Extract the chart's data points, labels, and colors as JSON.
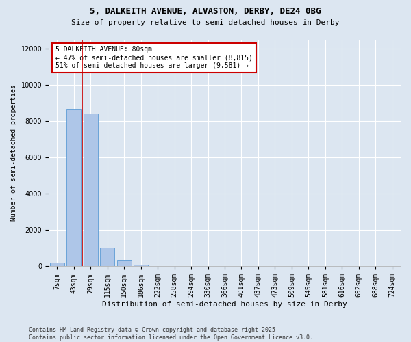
{
  "title1": "5, DALKEITH AVENUE, ALVASTON, DERBY, DE24 0BG",
  "title2": "Size of property relative to semi-detached houses in Derby",
  "xlabel": "Distribution of semi-detached houses by size in Derby",
  "ylabel": "Number of semi-detached properties",
  "categories": [
    "7sqm",
    "43sqm",
    "79sqm",
    "115sqm",
    "150sqm",
    "186sqm",
    "222sqm",
    "258sqm",
    "294sqm",
    "330sqm",
    "366sqm",
    "401sqm",
    "437sqm",
    "473sqm",
    "509sqm",
    "545sqm",
    "581sqm",
    "616sqm",
    "652sqm",
    "688sqm",
    "724sqm"
  ],
  "values": [
    200,
    8650,
    8400,
    1050,
    350,
    80,
    10,
    0,
    0,
    0,
    0,
    0,
    0,
    0,
    0,
    0,
    0,
    0,
    0,
    0,
    0
  ],
  "bar_color": "#aec6e8",
  "bar_edge_color": "#5b9bd5",
  "bg_color": "#dce6f1",
  "grid_color": "#ffffff",
  "annotation_line1": "5 DALKEITH AVENUE: 80sqm",
  "annotation_line2": "← 47% of semi-detached houses are smaller (8,815)",
  "annotation_line3": "51% of semi-detached houses are larger (9,581) →",
  "annotation_box_color": "#ffffff",
  "annotation_box_edge_color": "#cc0000",
  "vline_color": "#cc0000",
  "vline_pos": 1.5,
  "ylim": [
    0,
    12500
  ],
  "yticks": [
    0,
    2000,
    4000,
    6000,
    8000,
    10000,
    12000
  ],
  "footer": "Contains HM Land Registry data © Crown copyright and database right 2025.\nContains public sector information licensed under the Open Government Licence v3.0.",
  "title1_fontsize": 9,
  "title2_fontsize": 8,
  "xlabel_fontsize": 8,
  "ylabel_fontsize": 7,
  "tick_fontsize": 7,
  "annotation_fontsize": 7,
  "footer_fontsize": 6
}
